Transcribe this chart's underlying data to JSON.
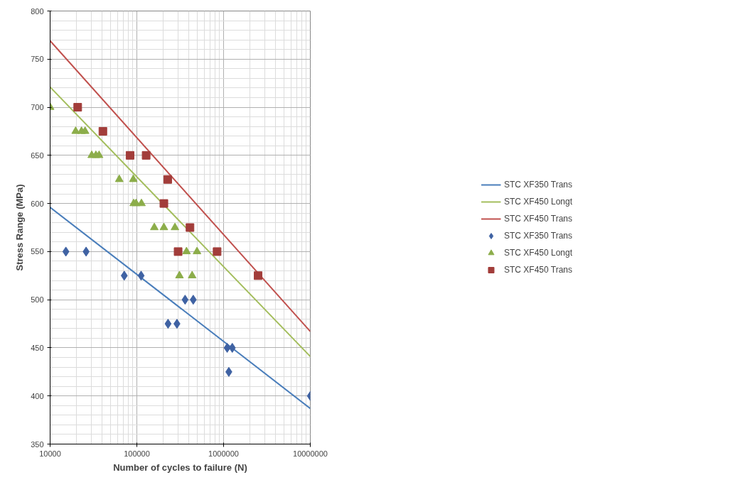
{
  "chart_data": {
    "type": "scatter",
    "xlabel": "Number of cycles to failure (N)",
    "ylabel": "Stress Range (MPa)",
    "log": "x",
    "grid": true,
    "legend": "right",
    "xlim": [
      10000,
      10000000
    ],
    "xticks": [
      10000,
      100000,
      1000000,
      10000000
    ],
    "ylim": [
      350,
      800
    ],
    "yticks": [
      350,
      400,
      450,
      500,
      550,
      600,
      650,
      700,
      750,
      800
    ],
    "series": [
      {
        "name": "STC XF350 Trans",
        "type": "line",
        "color": "#4a7ebb",
        "x": [
          10000,
          10000000
        ],
        "values": [
          596,
          387
        ]
      },
      {
        "name": "STC XF450 Longt",
        "type": "line",
        "color": "#a3bd5c",
        "x": [
          10000,
          10000000
        ],
        "values": [
          721,
          441
        ]
      },
      {
        "name": "STC XF450 Trans",
        "type": "line",
        "color": "#c0504d",
        "x": [
          10000,
          10000000
        ],
        "values": [
          769,
          467
        ]
      },
      {
        "name": "STC XF350 Trans",
        "marker": "diamond",
        "color": "#3f62a3",
        "x": [
          15200,
          26000,
          71600,
          112000,
          229000,
          290000,
          360000,
          447000,
          1100000,
          1260000,
          1150000,
          10000000
        ],
        "values": [
          550,
          550,
          525,
          525,
          475,
          475,
          500,
          500,
          450,
          450,
          425,
          400
        ]
      },
      {
        "name": "STC XF450 Longt",
        "marker": "triangle",
        "color": "#8cad4a",
        "x": [
          10000,
          19700,
          23000,
          25300,
          30200,
          33700,
          36700,
          62700,
          91000,
          92000,
          97900,
          113000,
          159000,
          205000,
          275000,
          374000,
          494000,
          310000,
          434000
        ],
        "values": [
          700,
          675,
          675,
          675,
          650,
          650,
          650,
          625,
          625,
          600,
          600,
          600,
          575,
          575,
          575,
          550,
          550,
          525,
          525
        ]
      },
      {
        "name": "STC XF450 Trans",
        "marker": "square",
        "color": "#a23d3a",
        "x": [
          20800,
          40600,
          83500,
          128000,
          227000,
          205000,
          410000,
          299000,
          842000,
          2500000
        ],
        "values": [
          700,
          675,
          650,
          650,
          625,
          600,
          575,
          550,
          550,
          525
        ]
      }
    ]
  }
}
